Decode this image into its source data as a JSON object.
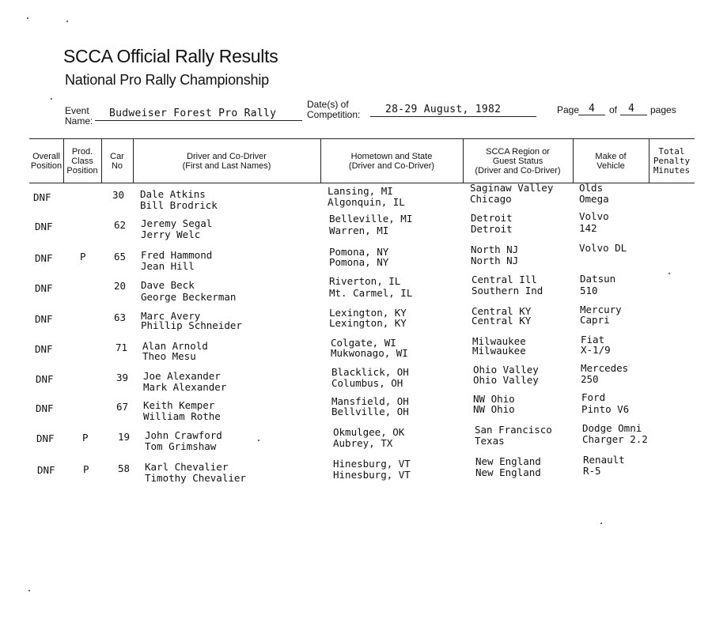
{
  "header": {
    "title": "SCCA Official Rally Results",
    "subtitle": "National Pro Rally Championship",
    "event_label": "Event\nName:",
    "event_name": "Budweiser Forest Pro Rally",
    "dates_label": "Date(s) of\nCompetition:",
    "dates_value": "28-29 August, 1982",
    "page_label": "Page",
    "page_number": "4",
    "of_label": "of",
    "page_total": "4",
    "pages_label": "pages"
  },
  "columns": [
    {
      "key": "overall",
      "label": "Overall\nPosition"
    },
    {
      "key": "prod_class",
      "label": "Prod.\nClass\nPosition"
    },
    {
      "key": "car_no",
      "label": "Car\nNo"
    },
    {
      "key": "driver",
      "label": "Driver and Co-Driver\n(First and Last Names)"
    },
    {
      "key": "hometown",
      "label": "Hometown and State\n(Driver and Co-Driver)"
    },
    {
      "key": "region",
      "label": "SCCA Region or\nGuest Status\n(Driver and Co-Driver)"
    },
    {
      "key": "make",
      "label": "Make of\nVehicle"
    },
    {
      "key": "penalty",
      "label": "Total\nPenalty\nMinutes"
    }
  ],
  "rows": [
    {
      "overall": "DNF",
      "prod_class": "",
      "car_no": "30",
      "driver": [
        "Dale Atkins",
        "Bill Brodrick"
      ],
      "hometown": [
        "Lansing, MI",
        "Algonquin, IL"
      ],
      "region": [
        "Saginaw Valley",
        "Chicago"
      ],
      "make": [
        "Olds",
        "Omega"
      ],
      "penalty": ""
    },
    {
      "overall": "DNF",
      "prod_class": "",
      "car_no": "62",
      "driver": [
        "Jeremy Segal",
        "Jerry Welc"
      ],
      "hometown": [
        "Belleville, MI",
        "Warren, MI"
      ],
      "region": [
        "Detroit",
        "Detroit"
      ],
      "make": [
        "Volvo",
        "142"
      ],
      "penalty": ""
    },
    {
      "overall": "DNF",
      "prod_class": "P",
      "car_no": "65",
      "driver": [
        "Fred Hammond",
        "Jean Hill"
      ],
      "hometown": [
        "Pomona, NY",
        "Pomona, NY"
      ],
      "region": [
        "North NJ",
        "North NJ"
      ],
      "make": [
        "Volvo DL",
        ""
      ],
      "penalty": ""
    },
    {
      "overall": "DNF",
      "prod_class": "",
      "car_no": "20",
      "driver": [
        "Dave Beck",
        "George Beckerman"
      ],
      "hometown": [
        "Riverton, IL",
        "Mt. Carmel, IL"
      ],
      "region": [
        "Central Ill",
        "Southern Ind"
      ],
      "make": [
        "Datsun",
        "510"
      ],
      "penalty": ""
    },
    {
      "overall": "DNF",
      "prod_class": "",
      "car_no": "63",
      "driver": [
        "Marc Avery",
        "Phillip Schneider"
      ],
      "hometown": [
        "Lexington, KY",
        "Lexington, KY"
      ],
      "region": [
        "Central KY",
        "Central KY"
      ],
      "make": [
        "Mercury",
        "Capri"
      ],
      "penalty": ""
    },
    {
      "overall": "DNF",
      "prod_class": "",
      "car_no": "71",
      "driver": [
        "Alan Arnold",
        "Theo Mesu"
      ],
      "hometown": [
        "Colgate, WI",
        "Mukwonago, WI"
      ],
      "region": [
        "Milwaukee",
        "Milwaukee"
      ],
      "make": [
        "Fiat",
        "X-1/9"
      ],
      "penalty": ""
    },
    {
      "overall": "DNF",
      "prod_class": "",
      "car_no": "39",
      "driver": [
        "Joe Alexander",
        "Mark Alexander"
      ],
      "hometown": [
        "Blacklick, OH",
        "Columbus, OH"
      ],
      "region": [
        "Ohio Valley",
        "Ohio Valley"
      ],
      "make": [
        "Mercedes",
        "250"
      ],
      "penalty": ""
    },
    {
      "overall": "DNF",
      "prod_class": "",
      "car_no": "67",
      "driver": [
        "Keith Kemper",
        "William Rothe"
      ],
      "hometown": [
        "Mansfield, OH",
        "Bellville, OH"
      ],
      "region": [
        "NW Ohio",
        "NW Ohio"
      ],
      "make": [
        "Ford",
        "Pinto V6"
      ],
      "penalty": ""
    },
    {
      "overall": "DNF",
      "prod_class": "P",
      "car_no": "19",
      "driver": [
        "John Crawford",
        "Tom Grimshaw"
      ],
      "hometown": [
        "Okmulgee, OK",
        "Aubrey, TX"
      ],
      "region": [
        "San Francisco",
        "Texas"
      ],
      "make": [
        "Dodge Omni",
        "Charger 2.2"
      ],
      "penalty": ""
    },
    {
      "overall": "DNF",
      "prod_class": "P",
      "car_no": "58",
      "driver": [
        "Karl Chevalier",
        "Timothy Chevalier"
      ],
      "hometown": [
        "Hinesburg, VT",
        "Hinesburg, VT"
      ],
      "region": [
        "New England",
        "New England"
      ],
      "make": [
        "Renault",
        "R-5"
      ],
      "penalty": ""
    }
  ]
}
